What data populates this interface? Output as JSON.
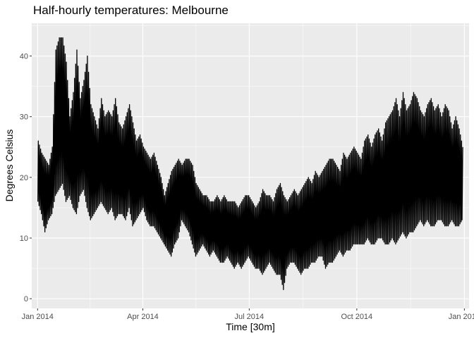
{
  "chart_data": {
    "type": "line",
    "title": "Half-hourly temperatures: Melbourne",
    "xlabel": "Time [30m]",
    "ylabel": "Degrees Celsius",
    "xlim": [
      "2013-12-27",
      "2015-01-05"
    ],
    "ylim": [
      -1.6,
      45.4
    ],
    "x_ticks": [
      {
        "label": "Jan 2014",
        "date": "2014-01-01"
      },
      {
        "label": "Apr 2014",
        "date": "2014-04-01"
      },
      {
        "label": "Jul 2014",
        "date": "2014-07-01"
      },
      {
        "label": "Oct 2014",
        "date": "2014-10-01"
      },
      {
        "label": "Jan 2015",
        "date": "2015-01-01"
      }
    ],
    "y_ticks": [
      0,
      10,
      20,
      30,
      40
    ],
    "grid": true,
    "panel_background": "#EBEBEB",
    "line_color": "#000000",
    "series": [
      {
        "x": [
          "2014-01-01",
          "2014-01-04",
          "2014-01-07",
          "2014-01-10",
          "2014-01-13",
          "2014-01-16",
          "2014-01-19",
          "2014-01-22",
          "2014-01-25",
          "2014-01-28",
          "2014-01-31",
          "2014-02-03",
          "2014-02-06",
          "2014-02-09",
          "2014-02-12",
          "2014-02-15",
          "2014-02-18",
          "2014-02-21",
          "2014-02-24",
          "2014-02-27",
          "2014-03-02",
          "2014-03-05",
          "2014-03-08",
          "2014-03-11",
          "2014-03-14",
          "2014-03-17",
          "2014-03-20",
          "2014-03-23",
          "2014-03-26",
          "2014-03-29",
          "2014-04-01",
          "2014-04-04",
          "2014-04-07",
          "2014-04-10",
          "2014-04-13",
          "2014-04-16",
          "2014-04-19",
          "2014-04-22",
          "2014-04-25",
          "2014-04-28",
          "2014-05-01",
          "2014-05-04",
          "2014-05-07",
          "2014-05-10",
          "2014-05-13",
          "2014-05-16",
          "2014-05-19",
          "2014-05-22",
          "2014-05-25",
          "2014-05-28",
          "2014-05-31",
          "2014-06-03",
          "2014-06-06",
          "2014-06-09",
          "2014-06-12",
          "2014-06-15",
          "2014-06-18",
          "2014-06-21",
          "2014-06-24",
          "2014-06-27",
          "2014-06-30",
          "2014-07-03",
          "2014-07-06",
          "2014-07-09",
          "2014-07-12",
          "2014-07-15",
          "2014-07-18",
          "2014-07-21",
          "2014-07-24",
          "2014-07-27",
          "2014-07-30",
          "2014-08-02",
          "2014-08-05",
          "2014-08-08",
          "2014-08-11",
          "2014-08-14",
          "2014-08-17",
          "2014-08-20",
          "2014-08-23",
          "2014-08-26",
          "2014-08-29",
          "2014-09-01",
          "2014-09-04",
          "2014-09-07",
          "2014-09-10",
          "2014-09-13",
          "2014-09-16",
          "2014-09-19",
          "2014-09-22",
          "2014-09-25",
          "2014-09-28",
          "2014-10-01",
          "2014-10-04",
          "2014-10-07",
          "2014-10-10",
          "2014-10-13",
          "2014-10-16",
          "2014-10-19",
          "2014-10-22",
          "2014-10-25",
          "2014-10-28",
          "2014-10-31",
          "2014-11-03",
          "2014-11-06",
          "2014-11-09",
          "2014-11-12",
          "2014-11-15",
          "2014-11-18",
          "2014-11-21",
          "2014-11-24",
          "2014-11-27",
          "2014-11-30",
          "2014-12-03",
          "2014-12-06",
          "2014-12-09",
          "2014-12-12",
          "2014-12-15",
          "2014-12-18",
          "2014-12-21",
          "2014-12-24",
          "2014-12-27",
          "2014-12-30"
        ],
        "low": [
          16,
          14,
          11,
          13,
          14,
          17,
          18,
          19,
          16,
          17,
          15,
          14,
          17,
          18,
          15,
          13,
          14,
          15,
          16,
          15,
          14,
          15,
          13,
          14,
          14,
          13,
          15,
          12,
          13,
          14,
          15,
          13,
          12,
          12,
          11,
          10,
          9,
          8,
          7,
          9,
          10,
          13,
          12,
          11,
          9,
          7,
          8,
          9,
          8,
          7,
          8,
          7,
          6,
          6,
          7,
          6,
          5,
          6,
          5,
          6,
          7,
          6,
          5,
          5,
          4,
          5,
          6,
          5,
          4,
          4,
          1.5,
          5,
          6,
          6,
          5,
          4,
          5,
          5,
          6,
          6,
          7,
          7,
          5,
          6,
          6,
          7,
          8,
          7,
          8,
          8,
          9,
          9,
          9,
          9,
          10,
          9,
          9,
          10,
          10,
          9,
          9,
          10,
          9,
          10,
          11,
          10,
          11,
          11,
          12,
          13,
          12,
          13,
          12,
          12,
          13,
          13,
          12,
          12,
          13,
          12,
          12,
          13
        ],
        "high": [
          26,
          24,
          23,
          22,
          25,
          41,
          43,
          43,
          39,
          30,
          34,
          41,
          33,
          36,
          40,
          32,
          30,
          28,
          33,
          30,
          31,
          30,
          33,
          29,
          28,
          30,
          32,
          29,
          26,
          27,
          25,
          24,
          23,
          24,
          22,
          20,
          17,
          19,
          21,
          22,
          23,
          22,
          23,
          23,
          22,
          19,
          18,
          17,
          17,
          16,
          16,
          17,
          16,
          17,
          16,
          16,
          16,
          15,
          16,
          17,
          17,
          16,
          15,
          16,
          18,
          17,
          17,
          16,
          18,
          19,
          17,
          16,
          17,
          18,
          17,
          18,
          19,
          20,
          19,
          21,
          20,
          21,
          22,
          23,
          23,
          22,
          21,
          24,
          23,
          24,
          25,
          24,
          23,
          26,
          27,
          25,
          27,
          28,
          26,
          29,
          30,
          31,
          33,
          30,
          34,
          31,
          32,
          34,
          33,
          31,
          30,
          32,
          33,
          31,
          32,
          30,
          32,
          31,
          28,
          30,
          28,
          25
        ]
      }
    ]
  }
}
